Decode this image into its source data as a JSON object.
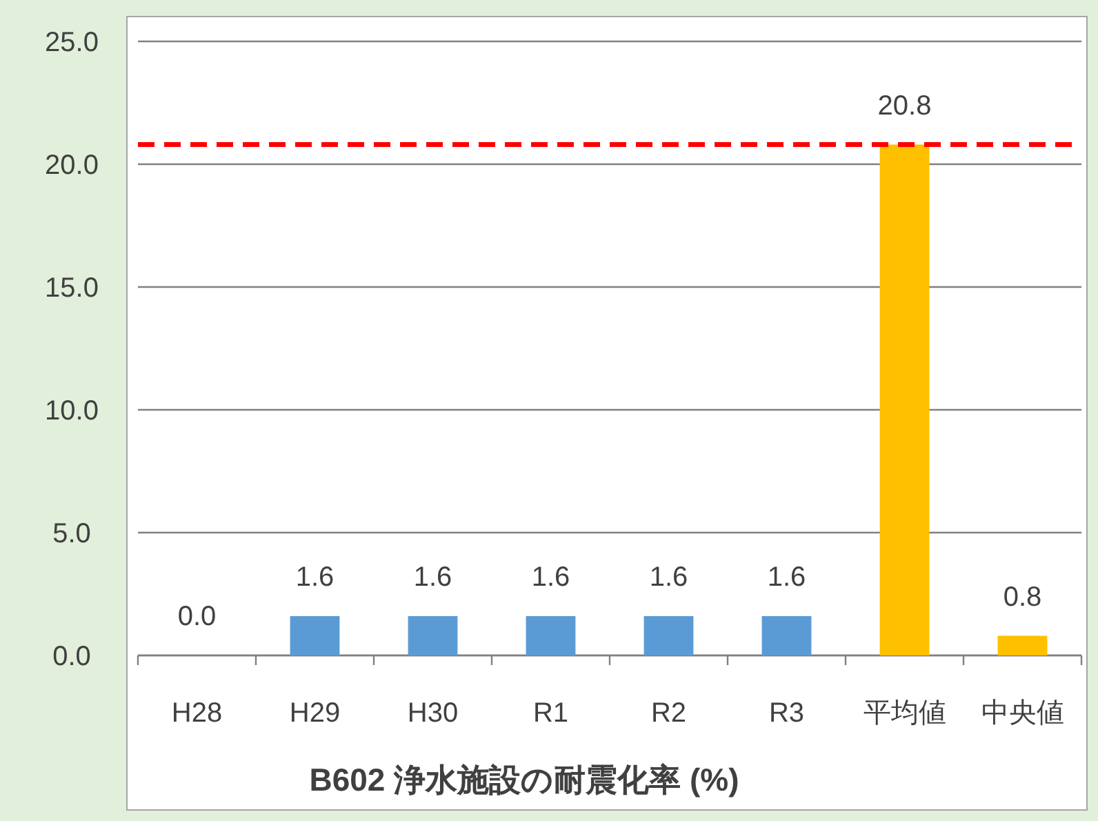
{
  "chart_data": {
    "type": "bar",
    "title": "B602 浄水施設の耐震化率 (%)",
    "categories": [
      "H28",
      "H29",
      "H30",
      "R1",
      "R2",
      "R3",
      "平均値",
      "中央値"
    ],
    "values": [
      0.0,
      1.6,
      1.6,
      1.6,
      1.6,
      1.6,
      20.8,
      0.8
    ],
    "colors": [
      "#5b9bd5",
      "#5b9bd5",
      "#5b9bd5",
      "#5b9bd5",
      "#5b9bd5",
      "#5b9bd5",
      "#ffc000",
      "#ffc000"
    ],
    "value_labels": [
      "0.0",
      "1.6",
      "1.6",
      "1.6",
      "1.6",
      "1.6",
      "20.8",
      "0.8"
    ],
    "ylim": [
      0,
      25
    ],
    "yticks": [
      {
        "value": 0,
        "label": "0.0"
      },
      {
        "value": 5,
        "label": "5.0"
      },
      {
        "value": 10,
        "label": "10.0"
      },
      {
        "value": 15,
        "label": "15.0"
      },
      {
        "value": 20,
        "label": "20.0"
      },
      {
        "value": 25,
        "label": "25.0"
      }
    ],
    "grid": "y",
    "ref_lines": [
      {
        "axis": "y",
        "value": 20.8,
        "color": "#ff0000",
        "line_style": "dashed"
      }
    ]
  }
}
